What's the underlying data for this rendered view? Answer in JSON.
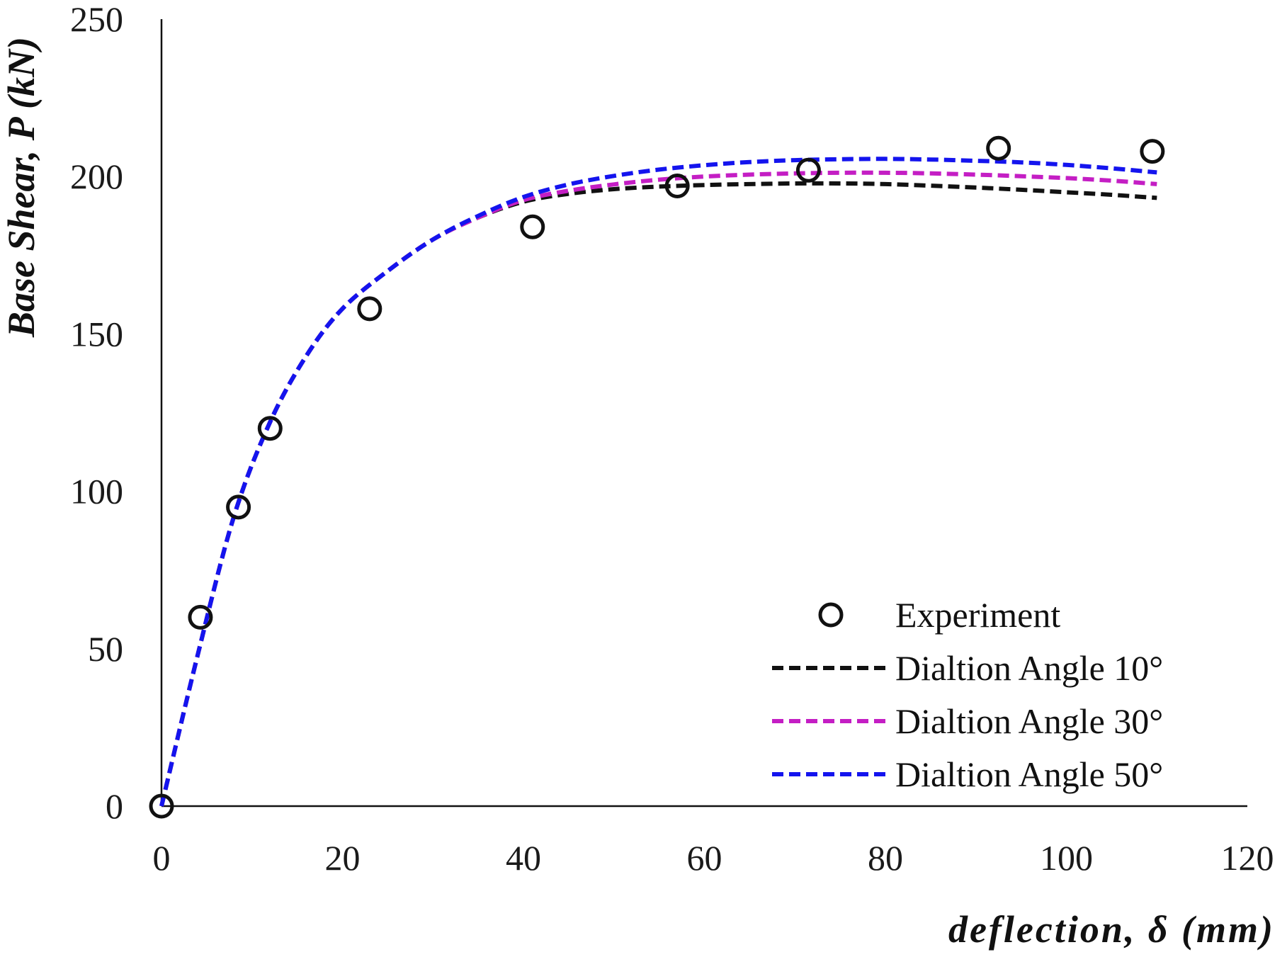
{
  "chart_data": {
    "type": "scatter",
    "xlabel": "deflection, δ (mm)",
    "ylabel": "Base Shear, P (kN)",
    "xlim": [
      0,
      120
    ],
    "ylim": [
      0,
      250
    ],
    "x_ticks": [
      "0",
      "20",
      "40",
      "60",
      "80",
      "100",
      "120"
    ],
    "y_ticks": [
      "0",
      "50",
      "100",
      "150",
      "200",
      "250"
    ],
    "grid": false,
    "legend_position": "bottom-right",
    "series": [
      {
        "name": "Experiment",
        "style": "markers",
        "marker": "open-circle",
        "color": "#111111",
        "x": [
          0,
          4.3,
          8.5,
          12,
          23,
          41,
          57,
          71.5,
          92.5,
          109.5
        ],
        "y": [
          0,
          60,
          95,
          120,
          158,
          184,
          197,
          202,
          209,
          208
        ]
      },
      {
        "name": "Dialtion Angle 10°",
        "style": "dashed-line",
        "color": "#111111",
        "x": [
          0,
          4,
          8,
          12,
          16,
          20,
          25,
          30,
          35,
          40,
          45,
          50,
          55,
          60,
          65,
          70,
          75,
          80,
          85,
          90,
          95,
          100,
          105,
          110
        ],
        "y": [
          0,
          48,
          92,
          122,
          143,
          158,
          170,
          180,
          187,
          192,
          194.5,
          196,
          196.8,
          197.3,
          197.6,
          197.8,
          197.8,
          197.6,
          197.1,
          196.5,
          195.8,
          195,
          194.2,
          193.2
        ]
      },
      {
        "name": "Dialtion Angle 30°",
        "style": "dashed-line",
        "color": "#c41ec4",
        "x": [
          0,
          4,
          8,
          12,
          16,
          20,
          25,
          30,
          35,
          40,
          45,
          50,
          55,
          60,
          65,
          70,
          75,
          80,
          85,
          90,
          95,
          100,
          105,
          110
        ],
        "y": [
          0,
          48,
          92,
          122,
          143,
          158,
          170,
          180,
          187,
          192.5,
          195.5,
          197.5,
          199,
          200,
          200.6,
          201,
          201.2,
          201.2,
          201,
          200.6,
          200.1,
          199.5,
          198.7,
          197.6
        ]
      },
      {
        "name": "Dialtion Angle 50°",
        "style": "dashed-line",
        "color": "#1414ee",
        "x": [
          0,
          4,
          8,
          12,
          16,
          20,
          25,
          30,
          35,
          40,
          45,
          50,
          55,
          60,
          65,
          70,
          75,
          80,
          85,
          90,
          95,
          100,
          105,
          110
        ],
        "y": [
          0,
          48,
          92,
          122,
          143,
          158,
          170,
          180,
          187.5,
          193.5,
          197.5,
          200.2,
          202.2,
          203.6,
          204.6,
          205.2,
          205.5,
          205.6,
          205.4,
          205,
          204.5,
          203.7,
          202.6,
          201.3
        ]
      }
    ]
  }
}
